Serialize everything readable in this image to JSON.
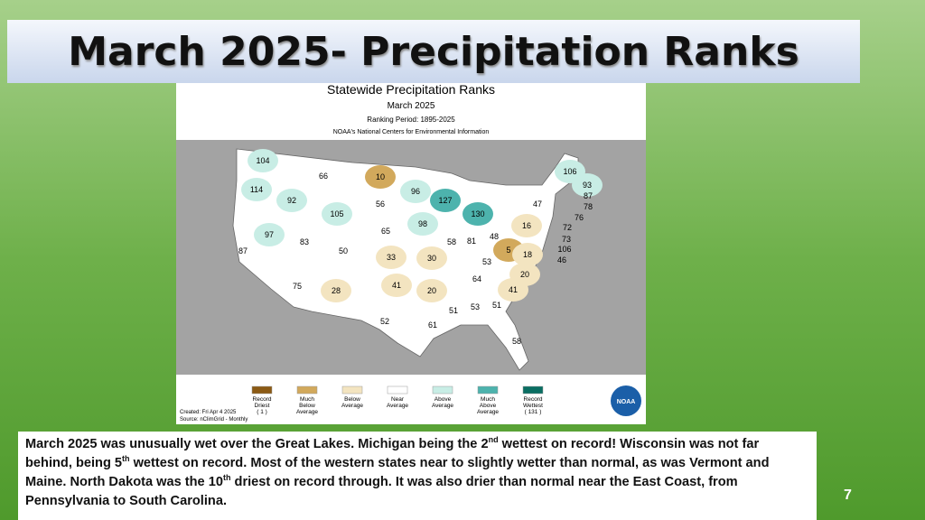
{
  "slide": {
    "title": "March 2025- Precipitation Ranks",
    "page_number": "7"
  },
  "map": {
    "title": "Statewide Precipitation Ranks",
    "subtitle": "March 2025",
    "ranking_period": "Ranking Period: 1895-2025",
    "source_org": "NOAA's National Centers for Environmental Information",
    "ranks": [
      104,
      114,
      92,
      66,
      10,
      96,
      127,
      130,
      106,
      93,
      87,
      78,
      76,
      72,
      73,
      106,
      46,
      47,
      16,
      105,
      56,
      98,
      97,
      83,
      50,
      65,
      58,
      81,
      48,
      5,
      18,
      87,
      33,
      30,
      53,
      20,
      75,
      28,
      41,
      20,
      64,
      41,
      52,
      61,
      51,
      53,
      51,
      58
    ],
    "legend": [
      {
        "label": [
          "Record",
          "Driest",
          "( 1 )"
        ],
        "color": "#8b5a14"
      },
      {
        "label": [
          "Much",
          "Below",
          "Average"
        ],
        "color": "#d2a95c"
      },
      {
        "label": [
          "Below",
          "Average"
        ],
        "color": "#f3e4c0"
      },
      {
        "label": [
          "Near",
          "Average"
        ],
        "color": "#ffffff"
      },
      {
        "label": [
          "Above",
          "Average"
        ],
        "color": "#c8ede5"
      },
      {
        "label": [
          "Much",
          "Above",
          "Average"
        ],
        "color": "#4db3ad"
      },
      {
        "label": [
          "Record",
          "Wettest",
          "( 131 )"
        ],
        "color": "#0a6e62"
      }
    ],
    "created": "Created: Fri Apr  4 2025",
    "source": "Source: nClimGrid - Monthly",
    "logo": "NOAA"
  },
  "body": [
    {
      "text": "March 2025 was unusually wet over the Great Lakes.  Michigan being the 2"
    },
    {
      "sup": "nd"
    },
    {
      "text": " wettest on record! Wisconsin was not far behind, being 5"
    },
    {
      "sup": "th"
    },
    {
      "text": " wettest on record. Most of the western states near to slightly wetter than normal, as was Vermont and Maine.  North Dakota was the 10"
    },
    {
      "sup": "th"
    },
    {
      "text": " driest on record through.  It was also drier than normal near the East Coast, from Pennsylvania to South Carolina."
    }
  ]
}
